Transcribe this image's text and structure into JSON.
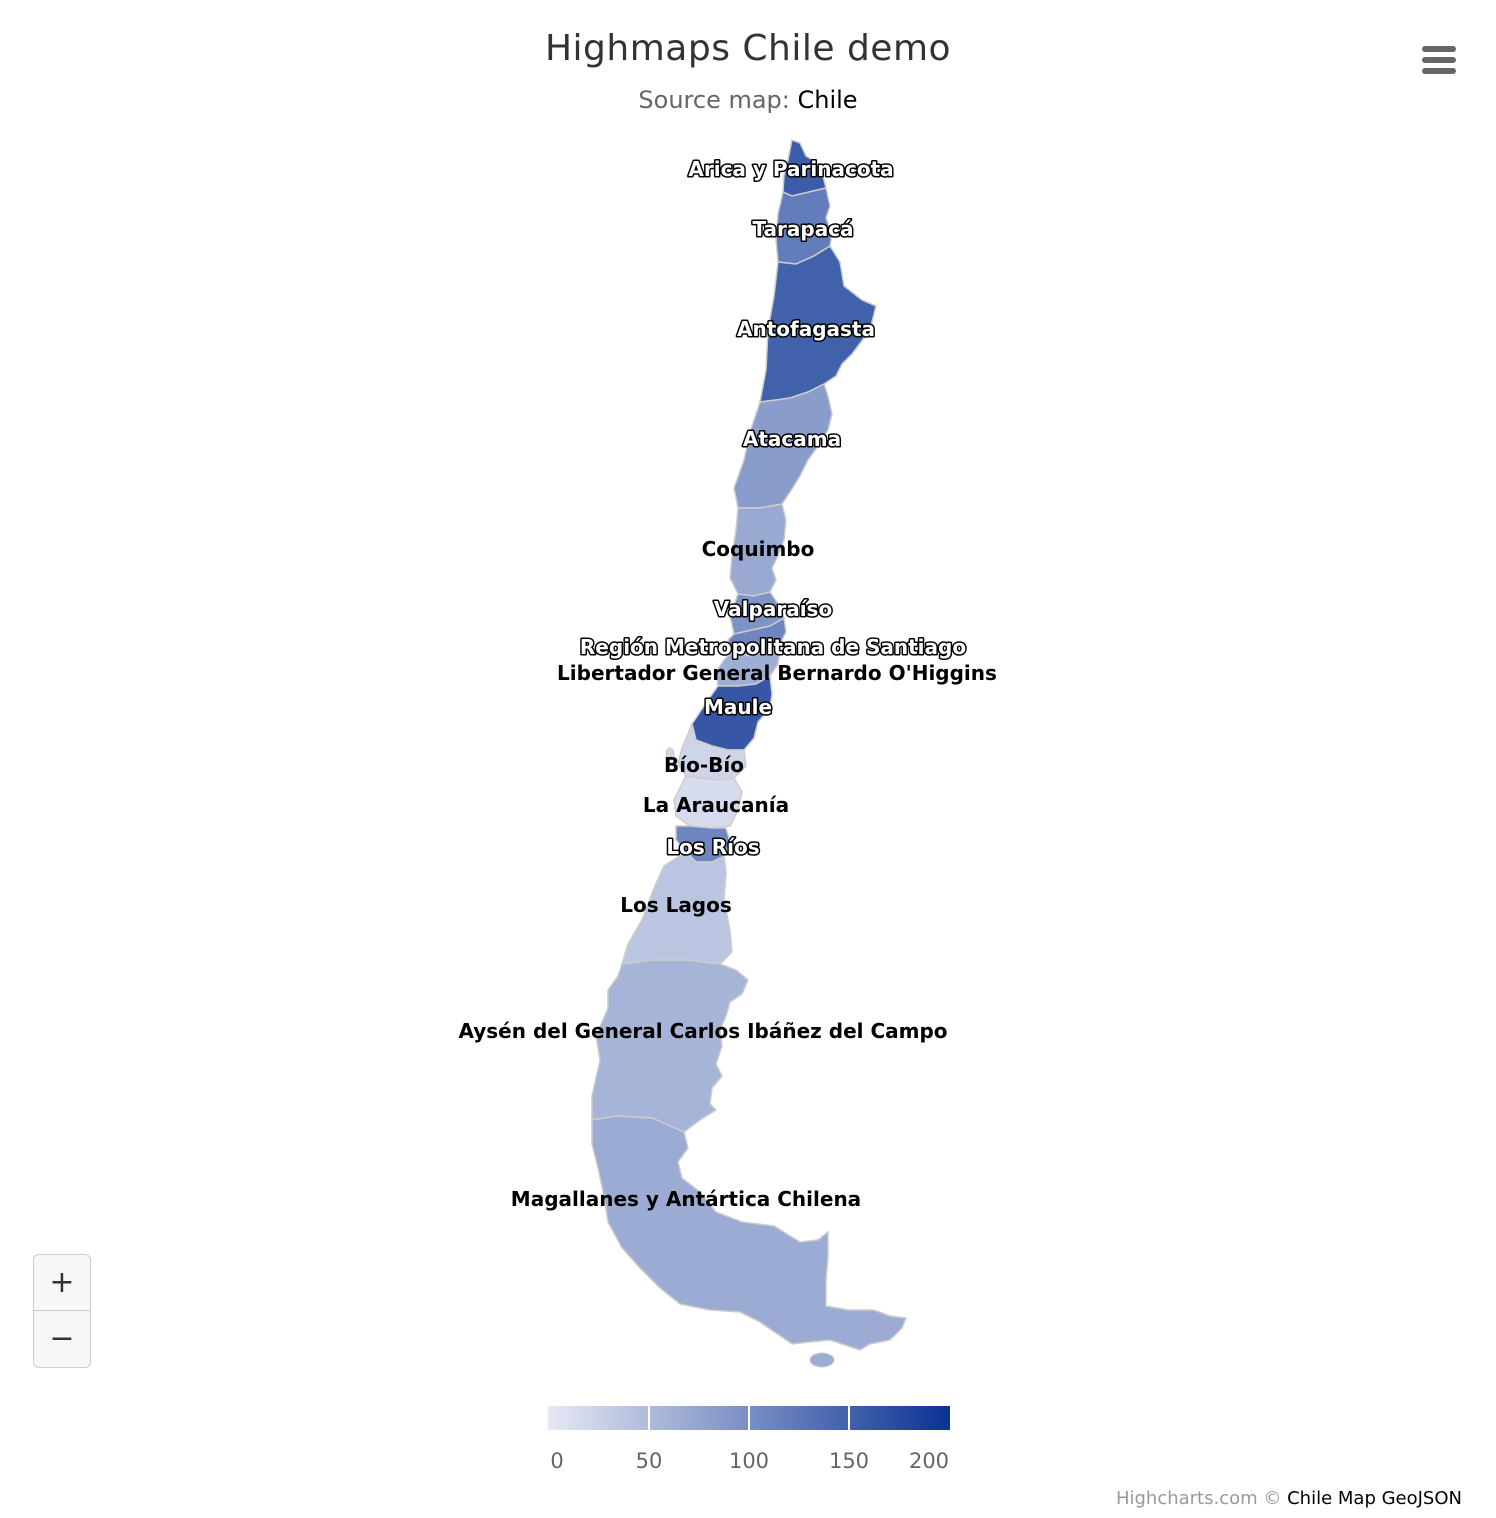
{
  "title": "Highmaps Chile demo",
  "subtitle": {
    "prefix": "Source map: ",
    "link": "Chile"
  },
  "menu_icon": "hamburger-menu-icon",
  "zoom": {
    "in_label": "+",
    "out_label": "−"
  },
  "credits": {
    "prefix": "Highcharts.com © ",
    "source": "Chile Map GeoJSON"
  },
  "color_axis": {
    "min": 0,
    "max": 200,
    "min_color": "#e6e9f4",
    "max_color": "#0b3393",
    "ticks": [
      "0",
      "50",
      "100",
      "150",
      "200"
    ]
  },
  "regions": [
    {
      "name": "Arica y Parinacota",
      "value": 155,
      "label_style": "outlined"
    },
    {
      "name": "Tarapacá",
      "value": 120,
      "label_style": "outlined"
    },
    {
      "name": "Antofagasta",
      "value": 150,
      "label_style": "outlined"
    },
    {
      "name": "Atacama",
      "value": 85,
      "label_style": "outlined"
    },
    {
      "name": "Coquimbo",
      "value": 70,
      "label_style": "dark"
    },
    {
      "name": "Valparaíso",
      "value": 95,
      "label_style": "outlined"
    },
    {
      "name": "Región Metropolitana de Santiago",
      "value": 110,
      "label_style": "outlined"
    },
    {
      "name": "Libertador General Bernardo O'Higgins",
      "value": 65,
      "label_style": "dark"
    },
    {
      "name": "Maule",
      "value": 160,
      "label_style": "outlined"
    },
    {
      "name": "Bío-Bío",
      "value": 22,
      "label_style": "dark"
    },
    {
      "name": "La Araucanía",
      "value": 15,
      "label_style": "dark"
    },
    {
      "name": "Los Ríos",
      "value": 110,
      "label_style": "outlined"
    },
    {
      "name": "Los Lagos",
      "value": 40,
      "label_style": "dark"
    },
    {
      "name": "Aysén del General Carlos Ibáñez del Campo",
      "value": 58,
      "label_style": "dark"
    },
    {
      "name": "Magallanes y Antártica Chilena",
      "value": 68,
      "label_style": "dark"
    }
  ]
}
